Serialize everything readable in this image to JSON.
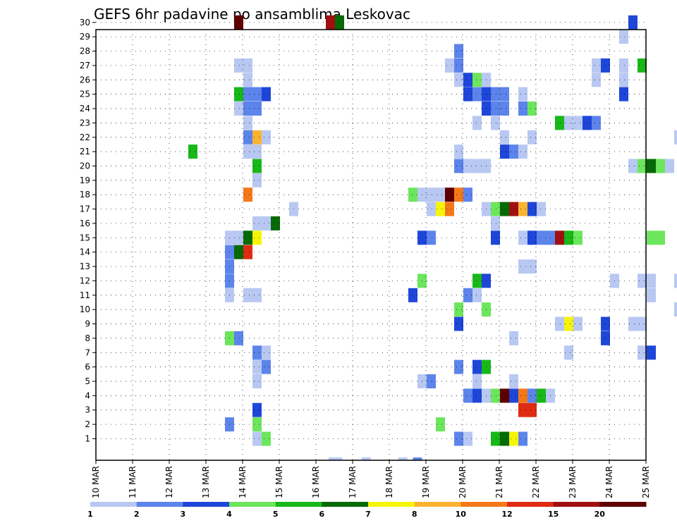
{
  "chart_data": {
    "type": "heatmap",
    "title": "GEFS 6hr padavine po ansamblima Leskovac",
    "x_tick_labels": [
      "10 MAR",
      "11 MAR",
      "12 MAR",
      "13 MAR",
      "14 MAR",
      "15 MAR",
      "16 MAR",
      "17 MAR",
      "18 MAR",
      "19 MAR",
      "20 MAR",
      "21 MAR",
      "22 MAR",
      "23 MAR",
      "24 MAR",
      "25 MAR"
    ],
    "y_tick_labels": [
      "1",
      "2",
      "3",
      "4",
      "5",
      "6",
      "7",
      "8",
      "9",
      "10",
      "11",
      "12",
      "13",
      "14",
      "15",
      "16",
      "17",
      "18",
      "19",
      "20",
      "21",
      "22",
      "23",
      "24",
      "25",
      "26",
      "27",
      "28",
      "29",
      "30"
    ],
    "xlim": [
      0,
      60
    ],
    "ylim": [
      0,
      30
    ],
    "grid": true,
    "colorbar": {
      "levels": [
        1,
        2,
        3,
        4,
        5,
        6,
        7,
        8,
        10,
        12,
        15,
        20
      ],
      "colors": [
        "#b8c8f2",
        "#5c84ea",
        "#1e46d8",
        "#6ce65c",
        "#18b818",
        "#066a06",
        "#f5f50a",
        "#fab432",
        "#f57818",
        "#de2c12",
        "#a01010",
        "#5e0000"
      ]
    },
    "cells": [
      [
        13.3,
        1,
        0
      ],
      [
        13.4,
        1,
        0
      ],
      [
        13.8,
        1,
        0
      ],
      [
        13.5,
        1,
        0
      ],
      [
        16.9,
        1,
        0
      ],
      [
        20.9,
        1,
        0
      ],
      [
        22.5,
        2,
        0
      ],
      [
        3,
        12,
        30
      ],
      [
        13,
        11,
        30
      ],
      [
        14,
        6,
        30
      ],
      [
        46,
        3,
        30
      ],
      [
        45,
        1,
        29
      ],
      [
        27,
        2,
        28
      ],
      [
        3,
        1,
        27
      ],
      [
        4,
        1,
        27
      ],
      [
        26,
        1,
        27
      ],
      [
        27,
        2,
        27
      ],
      [
        42,
        1,
        27
      ],
      [
        43,
        3,
        27
      ],
      [
        45,
        1,
        27
      ],
      [
        47,
        5,
        27
      ],
      [
        4,
        1,
        26
      ],
      [
        27,
        1,
        26
      ],
      [
        28,
        3,
        26
      ],
      [
        29,
        4,
        26
      ],
      [
        30,
        1,
        26
      ],
      [
        42,
        1,
        26
      ],
      [
        45,
        1,
        26
      ],
      [
        3,
        5,
        25
      ],
      [
        4,
        2,
        25
      ],
      [
        5,
        2,
        25
      ],
      [
        6,
        3,
        25
      ],
      [
        28,
        3,
        25
      ],
      [
        29,
        2,
        25
      ],
      [
        30,
        3,
        25
      ],
      [
        31,
        2,
        25
      ],
      [
        32,
        2,
        25
      ],
      [
        34,
        1,
        25
      ],
      [
        45,
        3,
        25
      ],
      [
        53,
        1,
        25
      ],
      [
        54,
        11,
        25
      ],
      [
        55,
        5,
        25
      ],
      [
        3,
        1,
        24
      ],
      [
        4,
        2,
        24
      ],
      [
        5,
        2,
        24
      ],
      [
        30,
        3,
        24
      ],
      [
        31,
        2,
        24
      ],
      [
        32,
        2,
        24
      ],
      [
        34,
        2,
        24
      ],
      [
        35,
        4,
        24
      ],
      [
        4,
        1,
        23
      ],
      [
        29,
        1,
        23
      ],
      [
        31,
        1,
        23
      ],
      [
        38,
        5,
        23
      ],
      [
        39,
        1,
        23
      ],
      [
        40,
        1,
        23
      ],
      [
        41,
        3,
        23
      ],
      [
        42,
        2,
        23
      ],
      [
        4,
        2,
        22
      ],
      [
        5,
        8,
        22
      ],
      [
        6,
        1,
        22
      ],
      [
        32,
        1,
        22
      ],
      [
        35,
        1,
        22
      ],
      [
        51,
        1,
        22
      ],
      [
        -2,
        5,
        21
      ],
      [
        4,
        1,
        21
      ],
      [
        5,
        1,
        21
      ],
      [
        27,
        1,
        21
      ],
      [
        32,
        3,
        21
      ],
      [
        33,
        2,
        21
      ],
      [
        34,
        1,
        21
      ],
      [
        5,
        5,
        20
      ],
      [
        27,
        2,
        20
      ],
      [
        28,
        1,
        20
      ],
      [
        29,
        1,
        20
      ],
      [
        30,
        1,
        20
      ],
      [
        46,
        1,
        20
      ],
      [
        47,
        4,
        20
      ],
      [
        48,
        6,
        20
      ],
      [
        49,
        4,
        20
      ],
      [
        50,
        1,
        20
      ],
      [
        56,
        3,
        20
      ],
      [
        57,
        1,
        20
      ],
      [
        58,
        2,
        20
      ],
      [
        5,
        1,
        19
      ],
      [
        4,
        9,
        18
      ],
      [
        22,
        4,
        18
      ],
      [
        23,
        1,
        18
      ],
      [
        24,
        1,
        18
      ],
      [
        25,
        1,
        18
      ],
      [
        26,
        12,
        18
      ],
      [
        27,
        9,
        18
      ],
      [
        28,
        2,
        18
      ],
      [
        9,
        1,
        17
      ],
      [
        24,
        1,
        17
      ],
      [
        25,
        7,
        17
      ],
      [
        26,
        9,
        17
      ],
      [
        30,
        1,
        17
      ],
      [
        31,
        4,
        17
      ],
      [
        32,
        6,
        17
      ],
      [
        33,
        11,
        17
      ],
      [
        34,
        8,
        17
      ],
      [
        35,
        3,
        17
      ],
      [
        36,
        1,
        17
      ],
      [
        5,
        1,
        16
      ],
      [
        6,
        1,
        16
      ],
      [
        7,
        6,
        16
      ],
      [
        31,
        1,
        16
      ],
      [
        53,
        1,
        16
      ],
      [
        2,
        1,
        15
      ],
      [
        3,
        1,
        15
      ],
      [
        4,
        6,
        15
      ],
      [
        5,
        7,
        15
      ],
      [
        23,
        3,
        15
      ],
      [
        24,
        2,
        15
      ],
      [
        31,
        3,
        15
      ],
      [
        34,
        1,
        15
      ],
      [
        35,
        3,
        15
      ],
      [
        36,
        2,
        15
      ],
      [
        37,
        2,
        15
      ],
      [
        38,
        11,
        15
      ],
      [
        39,
        5,
        15
      ],
      [
        40,
        4,
        15
      ],
      [
        48,
        4,
        15
      ],
      [
        49,
        4,
        15
      ],
      [
        55,
        1,
        15
      ],
      [
        56,
        3,
        15
      ],
      [
        57,
        3,
        15
      ],
      [
        2,
        2,
        14
      ],
      [
        3,
        6,
        14
      ],
      [
        4,
        10,
        14
      ],
      [
        2,
        2,
        13
      ],
      [
        34,
        1,
        13
      ],
      [
        35,
        1,
        13
      ],
      [
        2,
        2,
        12
      ],
      [
        23,
        4,
        12
      ],
      [
        29,
        5,
        12
      ],
      [
        30,
        3,
        12
      ],
      [
        44,
        1,
        12
      ],
      [
        47,
        1,
        12
      ],
      [
        48,
        1,
        12
      ],
      [
        51,
        1,
        12
      ],
      [
        2,
        1,
        11
      ],
      [
        4,
        1,
        11
      ],
      [
        5,
        1,
        11
      ],
      [
        22,
        3,
        11
      ],
      [
        28,
        2,
        11
      ],
      [
        29,
        1,
        11
      ],
      [
        48,
        1,
        11
      ],
      [
        27,
        4,
        10
      ],
      [
        30,
        4,
        10
      ],
      [
        51,
        1,
        10
      ],
      [
        27,
        3,
        9
      ],
      [
        38,
        1,
        9
      ],
      [
        39,
        7,
        9
      ],
      [
        40,
        1,
        9
      ],
      [
        43,
        3,
        9
      ],
      [
        46,
        1,
        9
      ],
      [
        47,
        1,
        9
      ],
      [
        2,
        4,
        8
      ],
      [
        3,
        2,
        8
      ],
      [
        33,
        1,
        8
      ],
      [
        43,
        3,
        8
      ],
      [
        5,
        2,
        7
      ],
      [
        6,
        1,
        7
      ],
      [
        39,
        1,
        7
      ],
      [
        47,
        1,
        7
      ],
      [
        48,
        3,
        7
      ],
      [
        56,
        1,
        7
      ],
      [
        57,
        8,
        7
      ],
      [
        58,
        1,
        7
      ],
      [
        5,
        1,
        6
      ],
      [
        6,
        2,
        6
      ],
      [
        27,
        2,
        6
      ],
      [
        29,
        3,
        6
      ],
      [
        30,
        5,
        6
      ],
      [
        54,
        1,
        6
      ],
      [
        5,
        1,
        5
      ],
      [
        23,
        1,
        5
      ],
      [
        24,
        2,
        5
      ],
      [
        29,
        1,
        5
      ],
      [
        33,
        1,
        5
      ],
      [
        28,
        2,
        4
      ],
      [
        29,
        3,
        4
      ],
      [
        30,
        1,
        4
      ],
      [
        31,
        4,
        4
      ],
      [
        32,
        12,
        4
      ],
      [
        33,
        3,
        4
      ],
      [
        34,
        9,
        4
      ],
      [
        35,
        2,
        4
      ],
      [
        36,
        5,
        4
      ],
      [
        37,
        1,
        4
      ],
      [
        5,
        3,
        3
      ],
      [
        34,
        10,
        3
      ],
      [
        35,
        10,
        3
      ],
      [
        2,
        2,
        2
      ],
      [
        5,
        4,
        2
      ],
      [
        25,
        4,
        2
      ],
      [
        5,
        1,
        1
      ],
      [
        6,
        4,
        1
      ],
      [
        27,
        2,
        1
      ],
      [
        28,
        1,
        1
      ],
      [
        31,
        5,
        1
      ],
      [
        32,
        6,
        1
      ],
      [
        33,
        7,
        1
      ],
      [
        34,
        2,
        1
      ],
      [
        53,
        1,
        1
      ],
      [
        54,
        1,
        1
      ]
    ]
  }
}
